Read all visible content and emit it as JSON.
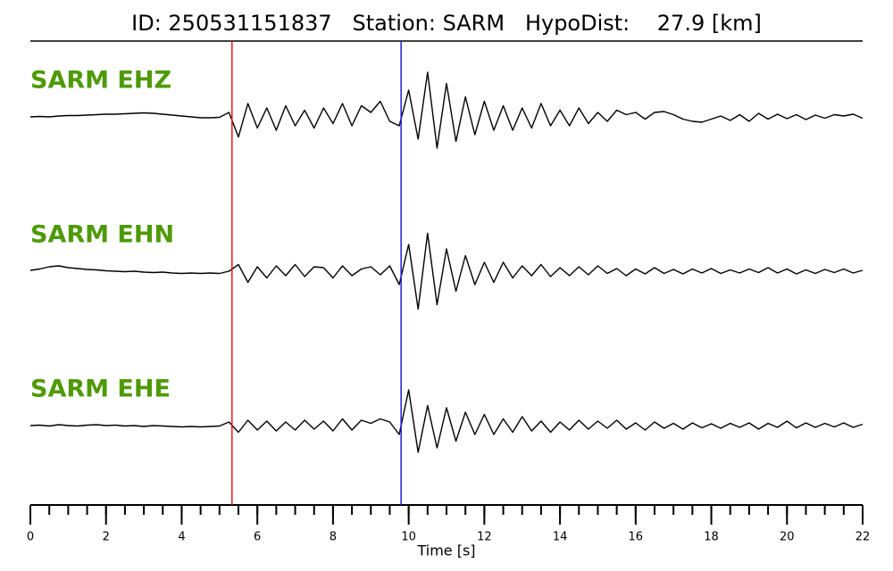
{
  "chart_data": {
    "type": "seismogram",
    "title": "ID: 250531151837   Station: SARM   HypoDist:    27.9 [km]",
    "xlabel": "Time [s]",
    "xlim": [
      0,
      22
    ],
    "xticks": [
      0,
      2,
      4,
      6,
      8,
      10,
      12,
      14,
      16,
      18,
      20,
      22
    ],
    "minor_tick_step": 0.5,
    "label_color": "#4e9a06",
    "picks": [
      {
        "time": 5.33,
        "color": "#e31a1c"
      },
      {
        "time": 9.8,
        "color": "#1f1fd6"
      }
    ],
    "x": [
      0,
      0.25,
      0.5,
      0.75,
      1,
      1.25,
      1.5,
      1.75,
      2,
      2.25,
      2.5,
      2.75,
      3,
      3.25,
      3.5,
      3.75,
      4,
      4.25,
      4.5,
      4.75,
      5,
      5.25,
      5.5,
      5.75,
      6,
      6.25,
      6.5,
      6.75,
      7,
      7.25,
      7.5,
      7.75,
      8,
      8.25,
      8.5,
      8.75,
      9,
      9.25,
      9.5,
      9.75,
      10,
      10.25,
      10.5,
      10.75,
      11,
      11.25,
      11.5,
      11.75,
      12,
      12.25,
      12.5,
      12.75,
      13,
      13.25,
      13.5,
      13.75,
      14,
      14.25,
      14.5,
      14.75,
      15,
      15.25,
      15.5,
      15.75,
      16,
      16.25,
      16.5,
      16.75,
      17,
      17.25,
      17.5,
      17.75,
      18,
      18.25,
      18.5,
      18.75,
      19,
      19.25,
      19.5,
      19.75,
      20,
      20.25,
      20.5,
      20.75,
      21,
      21.25,
      21.5,
      21.75,
      22
    ],
    "series": [
      {
        "name": "SARM EHZ",
        "color": "#000000",
        "values": [
          0,
          0.01,
          0.0,
          0.02,
          0.03,
          0.03,
          0.04,
          0.05,
          0.06,
          0.06,
          0.07,
          0.08,
          0.09,
          0.08,
          0.06,
          0.04,
          0.02,
          0.0,
          -0.02,
          -0.02,
          -0.01,
          0.1,
          -0.45,
          0.3,
          -0.25,
          0.2,
          -0.3,
          0.25,
          -0.2,
          0.15,
          -0.25,
          0.2,
          -0.15,
          0.3,
          -0.2,
          0.25,
          0.1,
          0.35,
          -0.1,
          -0.2,
          0.6,
          -0.5,
          1.0,
          -0.7,
          0.75,
          -0.55,
          0.45,
          -0.4,
          0.35,
          -0.3,
          0.25,
          -0.3,
          0.2,
          -0.25,
          0.3,
          -0.2,
          0.15,
          -0.2,
          0.2,
          -0.15,
          0.1,
          -0.1,
          0.15,
          0.05,
          0.1,
          -0.05,
          0.1,
          0.12,
          0.05,
          -0.05,
          -0.1,
          -0.12,
          -0.05,
          0.02,
          -0.08,
          0.05,
          -0.1,
          0.08,
          -0.05,
          0.06,
          -0.04,
          0.05,
          -0.06,
          0.04,
          -0.03,
          0.05,
          0.02,
          0.06,
          -0.03
        ]
      },
      {
        "name": "SARM EHN",
        "color": "#000000",
        "values": [
          0.02,
          0.05,
          0.1,
          0.12,
          0.08,
          0.06,
          0.04,
          0.03,
          0.01,
          0.0,
          -0.01,
          0.0,
          -0.02,
          -0.03,
          -0.02,
          -0.04,
          -0.05,
          -0.04,
          -0.05,
          -0.04,
          -0.05,
          0.0,
          0.15,
          -0.25,
          0.1,
          -0.15,
          0.12,
          -0.1,
          0.15,
          -0.12,
          0.1,
          0.08,
          -0.15,
          0.12,
          -0.1,
          0.05,
          0.1,
          -0.08,
          0.12,
          -0.3,
          0.6,
          -0.85,
          0.85,
          -0.75,
          0.5,
          -0.45,
          0.35,
          -0.3,
          0.2,
          -0.25,
          0.2,
          -0.15,
          0.12,
          -0.1,
          0.15,
          -0.12,
          0.08,
          -0.1,
          0.1,
          -0.08,
          0.12,
          -0.05,
          0.06,
          -0.1,
          0.05,
          -0.06,
          0.08,
          -0.05,
          0.04,
          -0.06,
          0.05,
          -0.04,
          0.06,
          -0.05,
          0.03,
          -0.04,
          0.05,
          -0.03,
          0.08,
          -0.04,
          0.05,
          -0.06,
          0.03,
          -0.05,
          0.04,
          -0.03,
          0.05,
          -0.04,
          0.02
        ]
      },
      {
        "name": "SARM EHE",
        "color": "#000000",
        "values": [
          0.0,
          0.01,
          -0.01,
          0.02,
          0.0,
          -0.01,
          0.01,
          0.02,
          0.0,
          0.01,
          -0.01,
          0.0,
          -0.02,
          0.0,
          -0.01,
          -0.02,
          -0.03,
          -0.02,
          -0.03,
          -0.02,
          -0.01,
          0.08,
          -0.15,
          0.12,
          -0.1,
          0.1,
          -0.12,
          0.08,
          -0.1,
          0.12,
          -0.08,
          0.1,
          -0.12,
          0.15,
          -0.1,
          0.12,
          0.05,
          0.15,
          0.08,
          -0.2,
          0.8,
          -0.6,
          0.45,
          -0.5,
          0.4,
          -0.35,
          0.3,
          -0.2,
          0.25,
          -0.2,
          0.15,
          -0.15,
          0.2,
          -0.12,
          0.1,
          -0.15,
          0.08,
          -0.1,
          0.12,
          -0.08,
          0.1,
          -0.06,
          0.12,
          -0.08,
          0.06,
          -0.1,
          0.08,
          -0.06,
          0.05,
          -0.08,
          0.06,
          -0.05,
          0.04,
          -0.06,
          0.05,
          -0.04,
          0.06,
          -0.08,
          0.05,
          -0.04,
          0.1,
          -0.05,
          0.06,
          -0.04,
          0.05,
          -0.03,
          0.06,
          -0.04,
          0.03
        ]
      }
    ]
  }
}
